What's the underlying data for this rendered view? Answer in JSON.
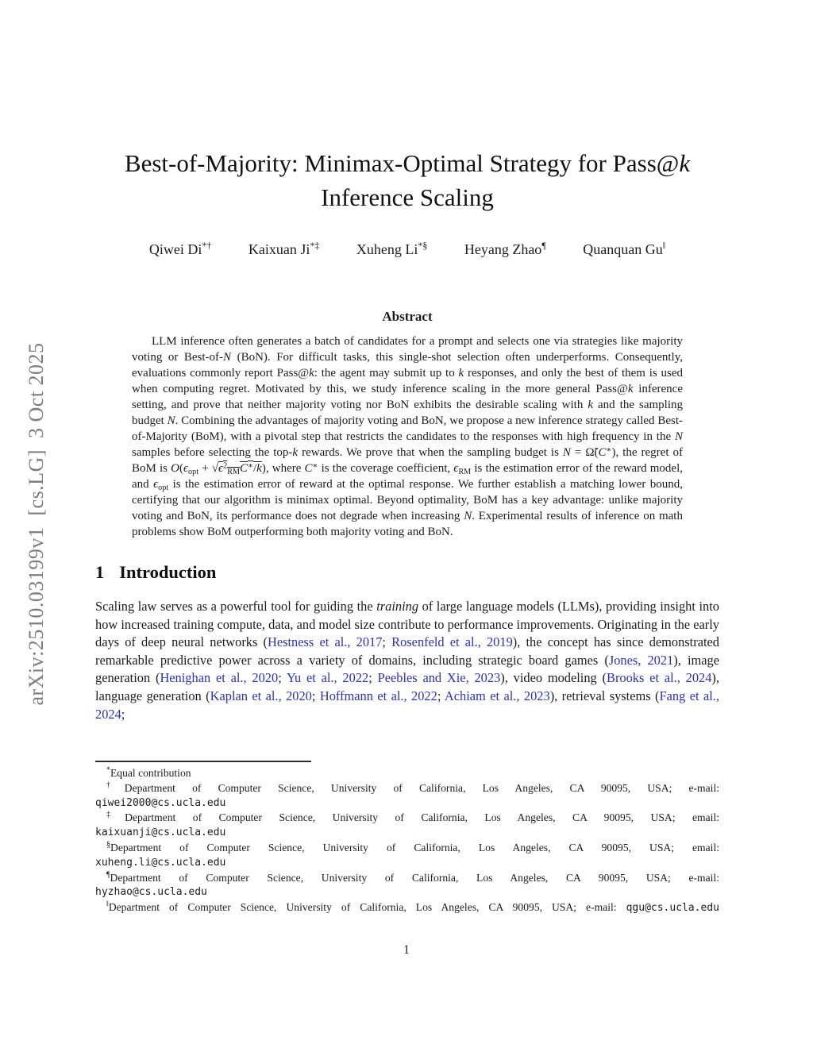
{
  "colors": {
    "citation": "#2b32b4",
    "watermark": "#7d7d7d",
    "ink": "#1c1c1c"
  },
  "arxiv_watermark": {
    "text": "arXiv:2510.03199v1  [cs.LG]  3 Oct 2025"
  },
  "title": {
    "line1": [
      {
        "s": "p",
        "t": "Best-of-Majority: Minimax-Optimal Strategy for Pass@"
      },
      {
        "s": "i",
        "t": "k"
      }
    ],
    "line2": "Inference Scaling"
  },
  "authors": [
    {
      "name": "Qiwei Di",
      "sup": "*†"
    },
    {
      "name": "Kaixuan Ji",
      "sup": "*‡"
    },
    {
      "name": "Xuheng Li",
      "sup": "*§"
    },
    {
      "name": "Heyang Zhao",
      "sup": "¶"
    },
    {
      "name": "Quanquan Gu",
      "sup": "‖"
    }
  ],
  "abstract": {
    "heading": "Abstract",
    "body": [
      {
        "s": "p",
        "t": "LLM inference often generates a batch of candidates for a prompt and selects one via strategies like majority voting or Best-of-"
      },
      {
        "s": "i",
        "t": "N"
      },
      {
        "s": "p",
        "t": " (BoN). For difficult tasks, this single-shot selection often underperforms. Consequently, evaluations commonly report Pass@"
      },
      {
        "s": "i",
        "t": "k"
      },
      {
        "s": "p",
        "t": ": the agent may submit up to "
      },
      {
        "s": "i",
        "t": "k"
      },
      {
        "s": "p",
        "t": " responses, and only the best of them is used when computing regret. Motivated by this, we study inference scaling in the more general Pass@"
      },
      {
        "s": "i",
        "t": "k"
      },
      {
        "s": "p",
        "t": " inference setting, and prove that neither majority voting nor BoN exhibits the desirable scaling with "
      },
      {
        "s": "i",
        "t": "k"
      },
      {
        "s": "p",
        "t": " and the sampling budget "
      },
      {
        "s": "i",
        "t": "N"
      },
      {
        "s": "p",
        "t": ". Combining the advantages of majority voting and BoN, we propose a new inference strategy called Best-of-Majority (BoM), with a pivotal step that restricts the candidates to the responses with high frequency in the "
      },
      {
        "s": "i",
        "t": "N"
      },
      {
        "s": "p",
        "t": " samples before selecting the top-"
      },
      {
        "s": "i",
        "t": "k"
      },
      {
        "s": "p",
        "t": " rewards. We prove that when the sampling budget is "
      },
      {
        "s": "i",
        "t": "N"
      },
      {
        "s": "p",
        "t": " = Ω̃("
      },
      {
        "s": "i",
        "t": "C"
      },
      {
        "s": "sup",
        "t": "∗"
      },
      {
        "s": "p",
        "t": "), the regret of BoM is "
      },
      {
        "s": "i",
        "t": "O"
      },
      {
        "s": "p",
        "t": "("
      },
      {
        "s": "i",
        "t": "ϵ"
      },
      {
        "s": "sub",
        "t": "opt"
      },
      {
        "s": "p",
        "t": " + "
      },
      {
        "s": "p",
        "t": "√"
      },
      {
        "s": "ov",
        "ch": [
          {
            "s": "i",
            "t": "ϵ"
          },
          {
            "s": "sup",
            "t": "2"
          },
          {
            "s": "sub",
            "t": "RM"
          },
          {
            "s": "i",
            "t": "C"
          },
          {
            "s": "sup",
            "t": "∗"
          },
          {
            "s": "p",
            "t": "/"
          },
          {
            "s": "i",
            "t": "k"
          }
        ]
      },
      {
        "s": "p",
        "t": "), where "
      },
      {
        "s": "i",
        "t": "C"
      },
      {
        "s": "sup",
        "t": "∗"
      },
      {
        "s": "p",
        "t": " is the coverage coefficient, "
      },
      {
        "s": "i",
        "t": "ϵ"
      },
      {
        "s": "sub",
        "t": "RM"
      },
      {
        "s": "p",
        "t": " is the estimation error of the reward model, and "
      },
      {
        "s": "i",
        "t": "ϵ"
      },
      {
        "s": "sub",
        "t": "opt"
      },
      {
        "s": "p",
        "t": " is the estimation error of reward at the optimal response. We further establish a matching lower bound, certifying that our algorithm is minimax optimal. Beyond optimality, BoM has a key advantage: unlike majority voting and BoN, its performance does not degrade when increasing "
      },
      {
        "s": "i",
        "t": "N"
      },
      {
        "s": "p",
        "t": ". Experimental results of inference on math problems show BoM outperforming both majority voting and BoN."
      }
    ]
  },
  "introduction": {
    "number": "1",
    "title": "Introduction",
    "body": [
      {
        "s": "p",
        "t": "Scaling law serves as a powerful tool for guiding the "
      },
      {
        "s": "i",
        "t": "training"
      },
      {
        "s": "p",
        "t": " of large language models (LLMs), providing insight into how increased training compute, data, and model size contribute to performance improvements. Originating in the early days of deep neural networks ("
      },
      {
        "s": "c",
        "t": "Hestness et al., 2017"
      },
      {
        "s": "p",
        "t": "; "
      },
      {
        "s": "c",
        "t": "Rosenfeld et al., 2019"
      },
      {
        "s": "p",
        "t": "), the concept has since demonstrated remarkable predictive power across a variety of domains, including strategic board games ("
      },
      {
        "s": "c",
        "t": "Jones, 2021"
      },
      {
        "s": "p",
        "t": "), image generation ("
      },
      {
        "s": "c",
        "t": "Henighan et al., 2020"
      },
      {
        "s": "p",
        "t": "; "
      },
      {
        "s": "c",
        "t": "Yu et al., 2022"
      },
      {
        "s": "p",
        "t": "; "
      },
      {
        "s": "c",
        "t": "Peebles and Xie, 2023"
      },
      {
        "s": "p",
        "t": "), video modeling ("
      },
      {
        "s": "c",
        "t": "Brooks et al., 2024"
      },
      {
        "s": "p",
        "t": "), language generation ("
      },
      {
        "s": "c",
        "t": "Kaplan et al., 2020"
      },
      {
        "s": "p",
        "t": "; "
      },
      {
        "s": "c",
        "t": "Hoffmann et al., 2022"
      },
      {
        "s": "p",
        "t": "; "
      },
      {
        "s": "c",
        "t": "Achiam et al., 2023"
      },
      {
        "s": "p",
        "t": "), retrieval systems ("
      },
      {
        "s": "c",
        "t": "Fang et al., 2024"
      },
      {
        "s": "p",
        "t": ";"
      }
    ]
  },
  "footnotes": [
    {
      "marker": "*",
      "text": "Equal contribution",
      "email": ""
    },
    {
      "marker": "†",
      "text": "Department of Computer Science, University of California, Los Angeles, CA 90095, USA; e-mail:",
      "email": "qiwei2000@cs.ucla.edu"
    },
    {
      "marker": "‡",
      "text": "Department of Computer Science, University of California, Los Angeles, CA 90095, USA; email:",
      "email": "kaixuanji@cs.ucla.edu"
    },
    {
      "marker": "§",
      "text": "Department of Computer Science, University of California, Los Angeles, CA 90095, USA; email:",
      "email": "xuheng.li@cs.ucla.edu"
    },
    {
      "marker": "¶",
      "text": "Department of Computer Science, University of California, Los Angeles, CA 90095, USA; e-mail:",
      "email": "hyzhao@cs.ucla.edu"
    },
    {
      "marker": "‖",
      "text": "Department of Computer Science, University of California, Los Angeles, CA 90095, USA; e-mail: ",
      "email": "qgu@cs.ucla.edu"
    }
  ],
  "page": {
    "number": "1"
  }
}
